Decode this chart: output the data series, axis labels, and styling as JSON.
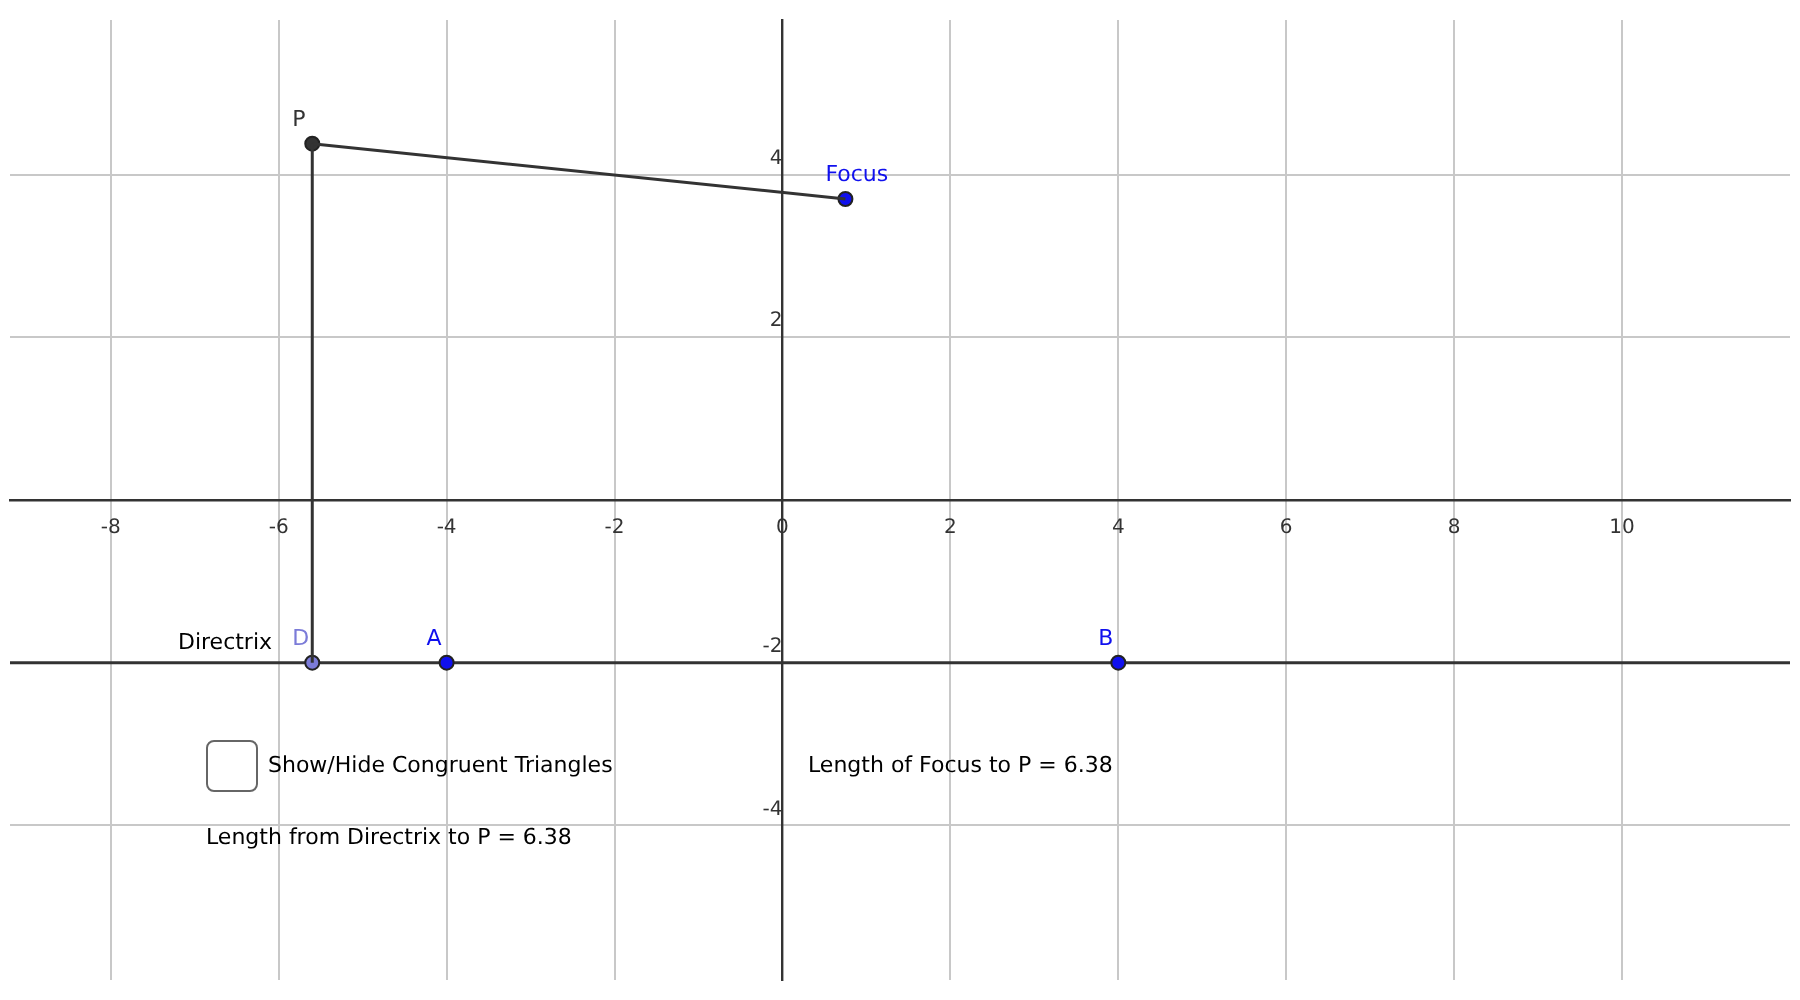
{
  "chart_data": {
    "type": "scatter",
    "xlim": [
      -9.2,
      12
    ],
    "ylim": [
      -5.9,
      5.9
    ],
    "xticks": [
      -8,
      -6,
      -4,
      -2,
      0,
      2,
      4,
      6,
      8,
      10
    ],
    "yticks": [
      -4,
      -2,
      {
        "value": 0,
        "label": null
      },
      2,
      4
    ],
    "grid": true,
    "legend": false,
    "series": [
      {
        "type": "line",
        "color": "#333333",
        "marker": "none",
        "x": [
          -5.6,
          -5.6
        ],
        "values": [
          -2,
          4.38
        ]
      },
      {
        "type": "line",
        "color": "#333333",
        "marker": "none",
        "x": [
          -5.6,
          0.75
        ],
        "values": [
          4.38,
          3.7
        ]
      },
      {
        "type": "scatter",
        "marker": "circle",
        "x": [
          -5.6,
          0.75,
          -5.6,
          -4,
          4
        ],
        "values": [
          4.38,
          3.7,
          -2,
          -2,
          -2
        ],
        "colors": [
          "#333333",
          "#1010ee",
          "#7b7bd8",
          "#1010ee",
          "#1010ee"
        ]
      }
    ],
    "ref_lines": [
      {
        "axis": "y",
        "value": -2,
        "label": "Directrix",
        "color": "#333333"
      }
    ],
    "annotations": [
      {
        "text": "P",
        "x": -5.6,
        "y": 4.38
      },
      {
        "text": "Focus",
        "x": 0.75,
        "y": 3.7
      },
      {
        "text": "D",
        "x": -5.6,
        "y": -2
      },
      {
        "text": "A",
        "x": -4,
        "y": -2
      },
      {
        "text": "B",
        "x": 4,
        "y": -2
      },
      "Show/Hide Congruent Triangles",
      "Length of Focus to P = 6.38",
      "Length from Directrix to P = 6.38"
    ]
  }
}
